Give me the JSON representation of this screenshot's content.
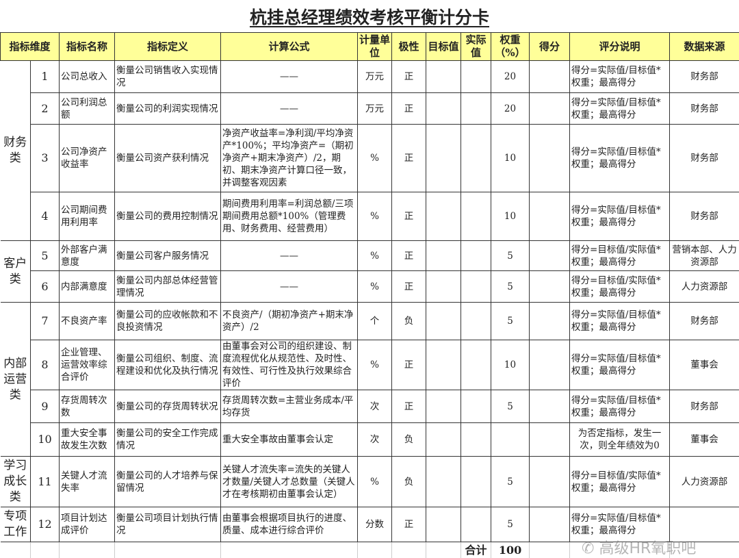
{
  "title": "杭挂总经理绩效考核平衡计分卡",
  "headers": [
    "指标维度",
    "指标名称",
    "指标定义",
    "计算公式",
    "计量单位",
    "极性",
    "目标值",
    "实际值",
    "权重（%）",
    "得分",
    "评分说明",
    "数据来源"
  ],
  "categories": [
    {
      "label": "财务类",
      "rows": 4
    },
    {
      "label": "客户类",
      "rows": 2
    },
    {
      "label": "内部运营类",
      "rows": 4
    },
    {
      "label": "学习成长类",
      "rows": 1
    },
    {
      "label": "专项工作",
      "rows": 1
    }
  ],
  "rows": [
    {
      "no": "1",
      "name": "公司总收入",
      "definition": "衡量公司销售收入实现情况",
      "formula": "——",
      "unit": "万元",
      "polarity": "正",
      "target": "",
      "actual": "",
      "weight": "20",
      "score": "",
      "note": "得分=实际值/目标值*权重；最高得分",
      "source": "财务部"
    },
    {
      "no": "2",
      "name": "公司利润总额",
      "definition": "衡量公司的利润实现情况",
      "formula": "——",
      "unit": "万元",
      "polarity": "正",
      "target": "",
      "actual": "",
      "weight": "20",
      "score": "",
      "note": "得分=实际值/目标值*权重；最高得分",
      "source": "财务部"
    },
    {
      "no": "3",
      "name": "公司净资产收益率",
      "definition": "衡量公司资产获利情况",
      "formula": "净资产收益率=净利润/平均净资产*100%；平均净资产=（期初净资产+期末净资产）/2，期初、期末净资产计算口径一致，并调整客观因素",
      "unit": "%",
      "polarity": "正",
      "target": "",
      "actual": "",
      "weight": "10",
      "score": "",
      "note": "得分=实际值/目标值*权重；最高得分",
      "source": "财务部"
    },
    {
      "no": "4",
      "name": "公司期间费用利用率",
      "definition": "衡量公司的费用控制情况",
      "formula": "期间费用利用率=利润总额/三项期间费用总额*100%（管理费用、财务费用、经营费用）",
      "unit": "%",
      "polarity": "正",
      "target": "",
      "actual": "",
      "weight": "10",
      "score": "",
      "note": "得分=实际值/目标值*权重；最高得分",
      "source": "财务部"
    },
    {
      "no": "5",
      "name": "外部客户满意度",
      "definition": "衡量公司客户服务情况",
      "formula": "——",
      "unit": "%",
      "polarity": "正",
      "target": "",
      "actual": "",
      "weight": "5",
      "score": "",
      "note": "得分=目标值/实际值*权重；最高得分",
      "source": "营销本部、人力资源部"
    },
    {
      "no": "6",
      "name": "内部满意度",
      "definition": "衡量公司内部总体经营管理情况",
      "formula": "——",
      "unit": "%",
      "polarity": "正",
      "target": "",
      "actual": "",
      "weight": "5",
      "score": "",
      "note": "得分=目标值/实际值*权重；最高得分",
      "source": "人力资源部"
    },
    {
      "no": "7",
      "name": "不良资产率",
      "definition": "衡量公司的应收帐款和不良投资情况",
      "formula": "不良资产/（期初净资产+期末净资产）/2",
      "unit": "个",
      "polarity": "负",
      "target": "",
      "actual": "",
      "weight": "5",
      "score": "",
      "note": "得分=实际值/目标值*权重；最高得分",
      "source": "财务部"
    },
    {
      "no": "8",
      "name": "企业管理、运营效率综合评价",
      "definition": "衡量公司组织、制度、流程建设和优化及执行情况",
      "formula": "由董事会对公司的组织建设、制度流程优化从规范性、及时性、有效性、可行性及执行效果综合评价",
      "unit": "%",
      "polarity": "正",
      "target": "",
      "actual": "",
      "weight": "10",
      "score": "",
      "note": "得分=实际值/目标值*权重；最高得分",
      "source": "董事会"
    },
    {
      "no": "9",
      "name": "存货周转次数",
      "definition": "衡量公司的存货周转状况",
      "formula": "存货周转次数=主营业务成本/平均存货",
      "unit": "次",
      "polarity": "正",
      "target": "",
      "actual": "",
      "weight": "5",
      "score": "",
      "note": "得分=实际值/目标值*权重；最高得分",
      "source": "财务部"
    },
    {
      "no": "10",
      "name": "重大安全事故发生次数",
      "definition": "衡量公司的安全工作完成情况",
      "formula": "重大安全事故由董事会认定",
      "unit": "次",
      "polarity": "负",
      "target": "",
      "actual": "",
      "weight": "",
      "score": "",
      "note": "为否定指标，发生一次，则全年绩效为0",
      "source": "董事会"
    },
    {
      "no": "11",
      "name": "关键人才流失率",
      "definition": "衡量公司的人才培养与保留情况",
      "formula": "关键人才流失率=流失的关键人才数量/关键人才总数量（关键人才在考核期初由董事会认定）",
      "unit": "%",
      "polarity": "负",
      "target": "",
      "actual": "",
      "weight": "5",
      "score": "",
      "note": "得分=目标值/实际值*权重；最高得分",
      "source": "人力资源部"
    },
    {
      "no": "12",
      "name": "项目计划达成评价",
      "definition": "衡量公司项目计划执行情况",
      "formula": "由董事会根据项目执行的进度、质量、成本进行综合评价",
      "unit": "分数",
      "polarity": "正",
      "target": "",
      "actual": "",
      "weight": "5",
      "score": "",
      "note": "得分=实际值/目标值*权重；最高得分",
      "source": ""
    }
  ],
  "total": {
    "label": "合计",
    "weight": "100"
  },
  "watermark": "高级HR氧职吧",
  "colors": {
    "header_bg": "#ffff99",
    "border": "#333333"
  }
}
